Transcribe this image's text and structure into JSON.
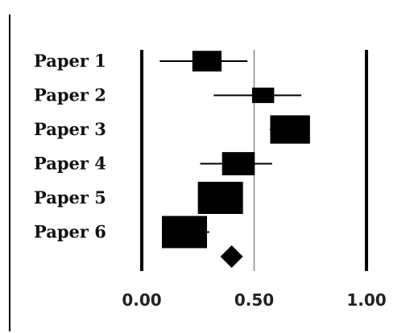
{
  "chart_data": {
    "type": "forest",
    "title": "",
    "xlabel": "",
    "ylabel": "",
    "xlim": [
      0,
      1
    ],
    "xticks": [
      0,
      0.5,
      1
    ],
    "xtick_labels": [
      "0.00",
      "0.50",
      "1.00"
    ],
    "grid": false,
    "legend": "none",
    "studies": [
      {
        "label": "Paper 1",
        "estimate": 0.29,
        "ci_low": 0.08,
        "ci_high": 0.47,
        "weight": 0.55
      },
      {
        "label": "Paper 2",
        "estimate": 0.54,
        "ci_low": 0.32,
        "ci_high": 0.71,
        "weight": 0.35
      },
      {
        "label": "Paper 3",
        "estimate": 0.66,
        "ci_low": 0.57,
        "ci_high": 0.73,
        "weight": 0.85
      },
      {
        "label": "Paper 4",
        "estimate": 0.43,
        "ci_low": 0.26,
        "ci_high": 0.58,
        "weight": 0.65
      },
      {
        "label": "Paper 5",
        "estimate": 0.35,
        "ci_low": 0.26,
        "ci_high": 0.44,
        "weight": 1.0
      },
      {
        "label": "Paper 6",
        "estimate": 0.19,
        "ci_low": 0.1,
        "ci_high": 0.3,
        "weight": 1.0
      }
    ],
    "summary": {
      "estimate": 0.4
    },
    "colors": {
      "ink": "#000000",
      "reference_line": "#888888"
    }
  }
}
